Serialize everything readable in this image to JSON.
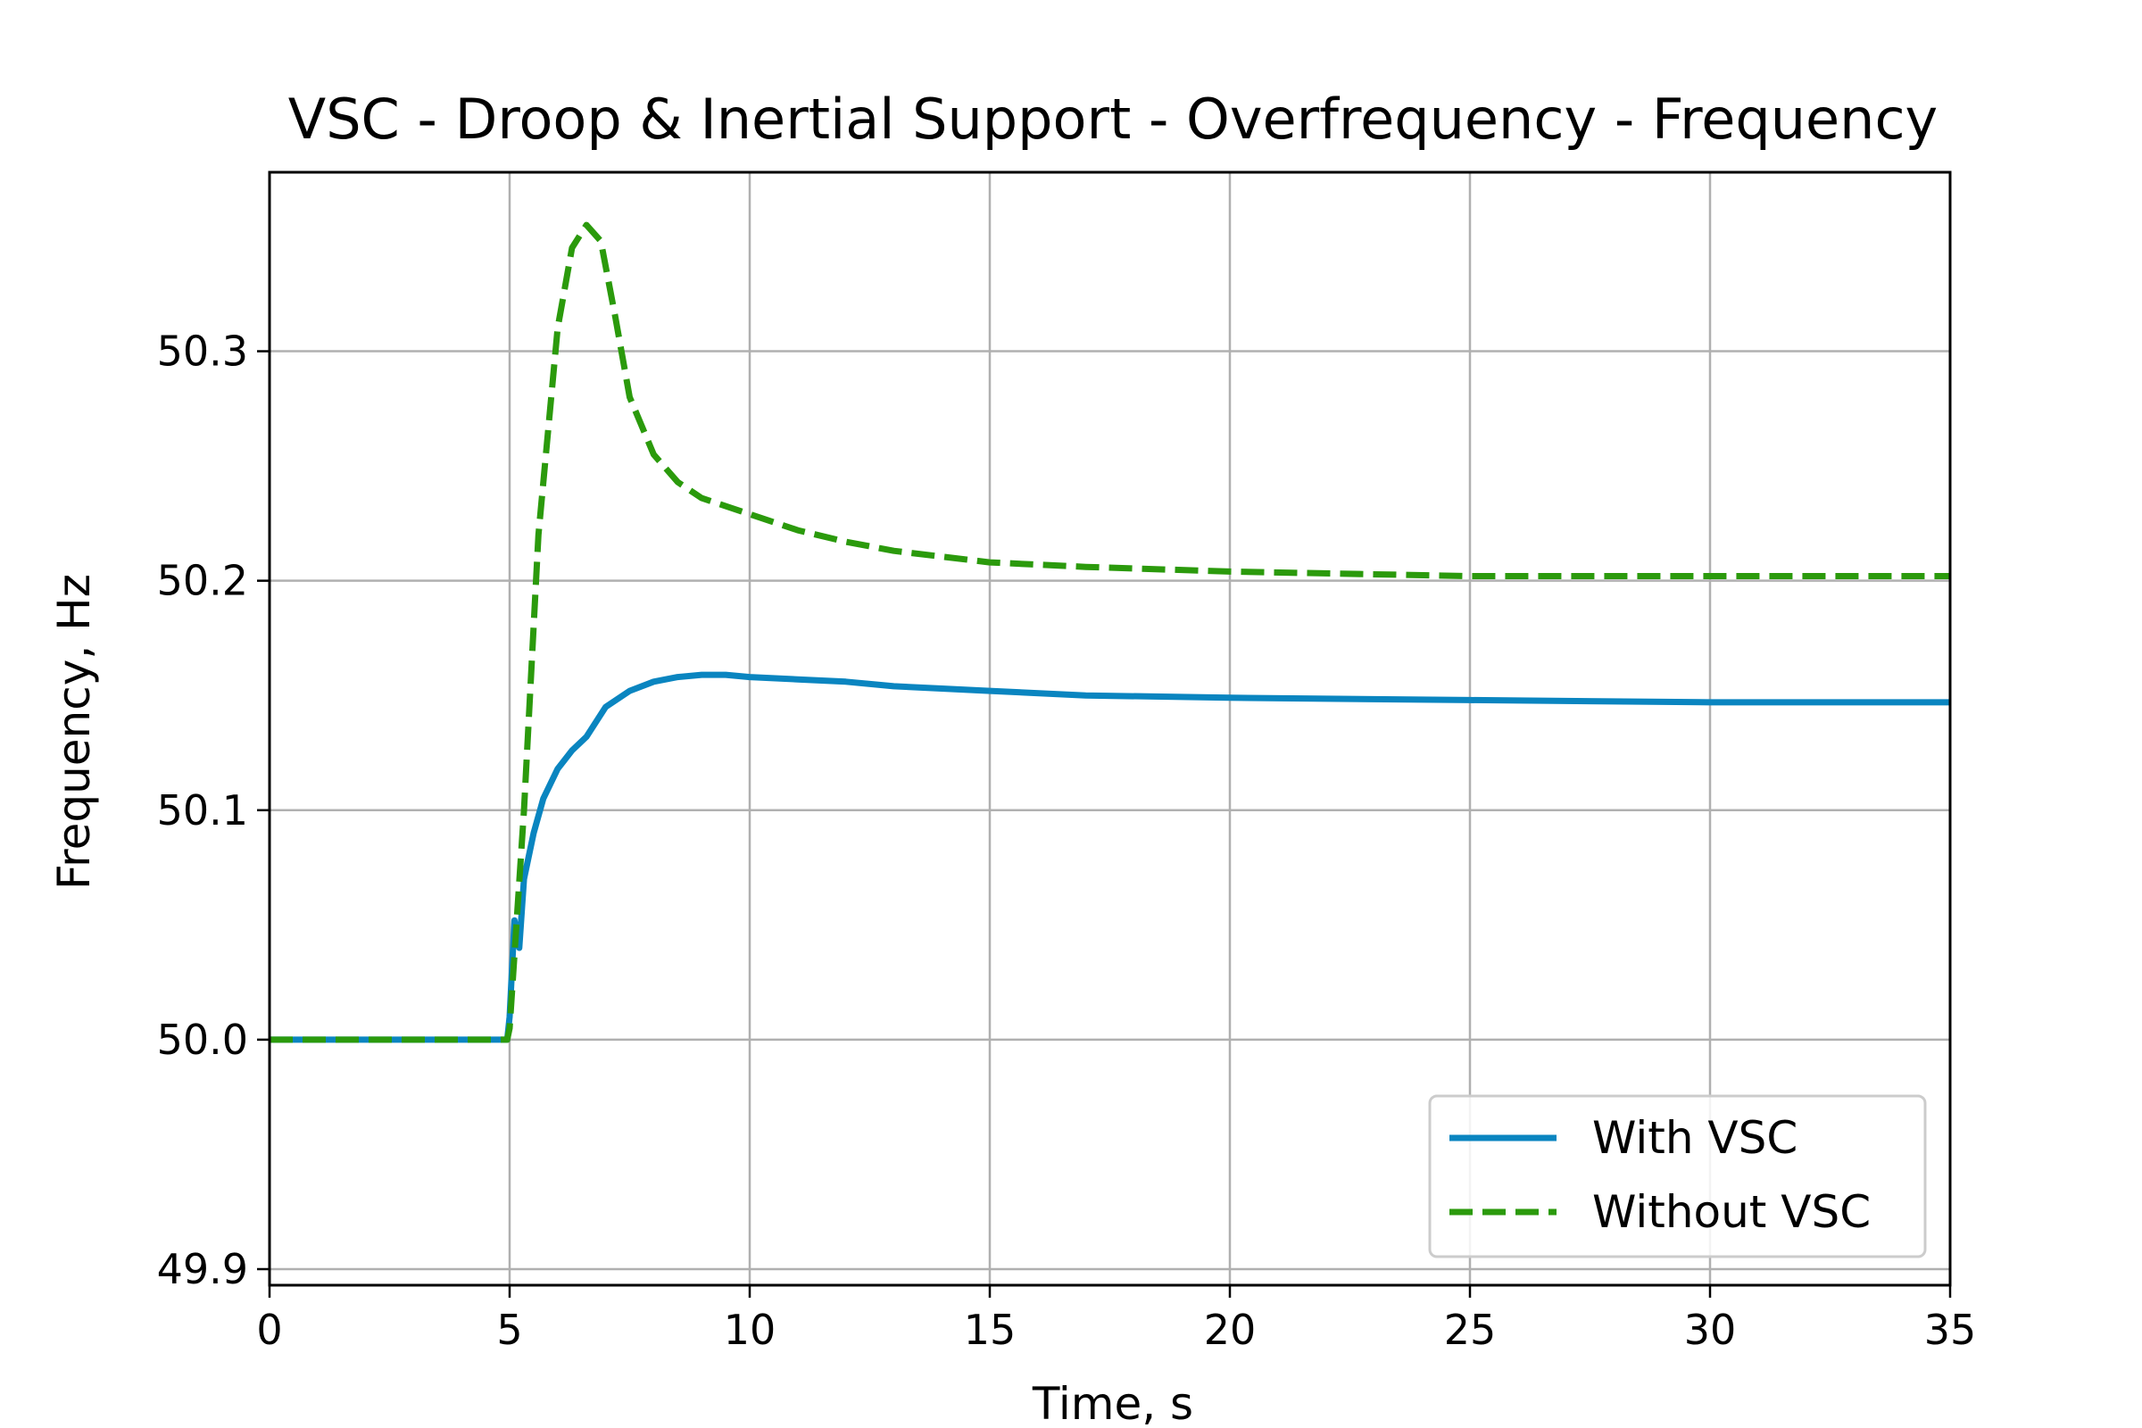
{
  "chart_data": {
    "type": "line",
    "title": "VSC - Droop & Inertial Support - Overfrequency - Frequency",
    "xlabel": "Time, s",
    "ylabel": "Frequency, Hz",
    "xlim": [
      0,
      35
    ],
    "ylim": [
      49.893,
      50.378
    ],
    "xticks": [
      0,
      5,
      10,
      15,
      20,
      25,
      30,
      35
    ],
    "xtick_labels": [
      "0",
      "5",
      "10",
      "15",
      "20",
      "25",
      "30",
      "35"
    ],
    "yticks": [
      49.9,
      50.0,
      50.1,
      50.2,
      50.3
    ],
    "ytick_labels": [
      "49.9",
      "50.0",
      "50.1",
      "50.2",
      "50.3"
    ],
    "grid": true,
    "legend_position": "lower-right",
    "series": [
      {
        "name": "With VSC",
        "color": "#0a85c0",
        "style": "solid",
        "x": [
          0,
          4.95,
          5.0,
          5.1,
          5.2,
          5.3,
          5.5,
          5.7,
          6.0,
          6.3,
          6.6,
          7.0,
          7.5,
          8.0,
          8.5,
          9.0,
          9.5,
          10.0,
          11.0,
          12.0,
          13.0,
          14.0,
          15.0,
          17.0,
          20.0,
          25.0,
          30.0,
          35.0
        ],
        "y": [
          50.0,
          50.0,
          50.01,
          50.052,
          50.04,
          50.07,
          50.09,
          50.105,
          50.118,
          50.126,
          50.132,
          50.145,
          50.152,
          50.156,
          50.158,
          50.159,
          50.159,
          50.158,
          50.157,
          50.156,
          50.154,
          50.153,
          50.152,
          50.15,
          50.149,
          50.148,
          50.147,
          50.147
        ]
      },
      {
        "name": "Without VSC",
        "color": "#2b9a0c",
        "style": "dashed",
        "x": [
          0,
          4.95,
          5.0,
          5.3,
          5.6,
          6.0,
          6.3,
          6.6,
          6.9,
          7.2,
          7.5,
          8.0,
          8.5,
          9.0,
          10.0,
          11.0,
          12.0,
          13.0,
          15.0,
          17.0,
          20.0,
          25.0,
          30.0,
          35.0
        ],
        "y": [
          50.0,
          50.0,
          50.005,
          50.1,
          50.22,
          50.31,
          50.345,
          50.355,
          50.348,
          50.315,
          50.28,
          50.255,
          50.243,
          50.236,
          50.229,
          50.222,
          50.217,
          50.213,
          50.208,
          50.206,
          50.204,
          50.202,
          50.202,
          50.202
        ]
      }
    ]
  }
}
